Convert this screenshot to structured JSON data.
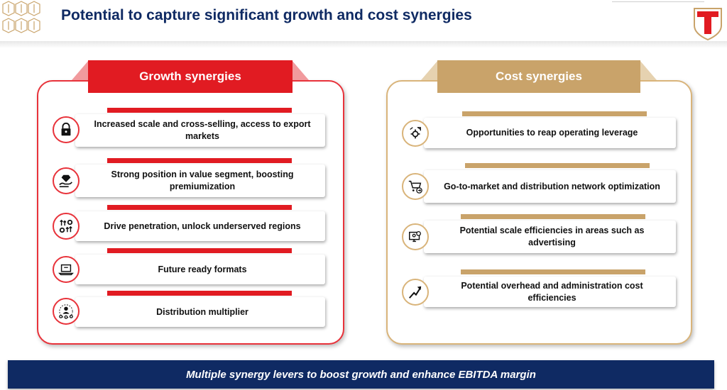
{
  "header": {
    "title": "Potential to capture significant growth and cost synergies",
    "logo_left_icon": "lattice-pattern-logo",
    "logo_right_icon": "t-shield-logo"
  },
  "colors": {
    "navy": "#0f2a63",
    "red": "#e11b22",
    "gold": "#c9a36a",
    "red_border": "#e8323a",
    "gold_border": "#d9b47a"
  },
  "growth": {
    "title": "Growth synergies",
    "items": [
      {
        "label": "Increased scale and cross-selling, access to export markets",
        "icon": "lock-icon"
      },
      {
        "label": "Strong position in value segment, boosting premiumization",
        "icon": "diamond-hand-icon"
      },
      {
        "label": "Drive penetration, unlock underserved regions",
        "icon": "growth-gears-icon"
      },
      {
        "label": "Future ready formats",
        "icon": "laptop-icon"
      },
      {
        "label": "Distribution multiplier",
        "icon": "network-person-icon"
      }
    ]
  },
  "cost": {
    "title": "Cost synergies",
    "items": [
      {
        "label": "Opportunities to reap operating leverage",
        "icon": "gear-arrows-icon"
      },
      {
        "label": "Go-to-market and distribution network optimization",
        "icon": "cart-arrow-icon"
      },
      {
        "label": "Potential scale efficiencies in areas such as advertising",
        "icon": "monitor-gear-icon"
      },
      {
        "label": "Potential overhead and administration cost efficiencies",
        "icon": "trend-up-icon"
      }
    ]
  },
  "footer": {
    "text": "Multiple synergy levers to boost growth and enhance EBITDA margin"
  }
}
